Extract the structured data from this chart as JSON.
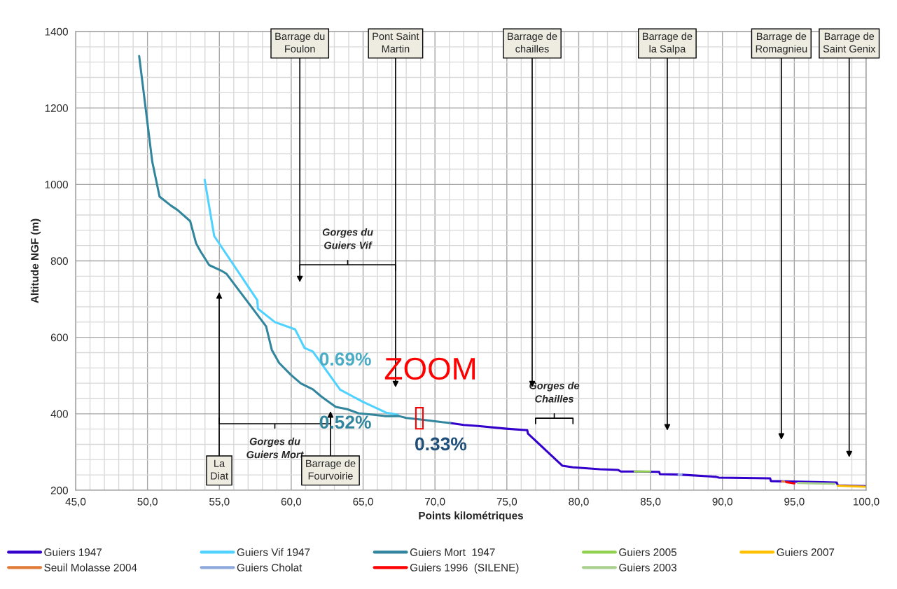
{
  "chart_data": {
    "type": "line",
    "xlabel": "Points kilométriques",
    "ylabel": "Altitude NGF (m)",
    "xlim": [
      45,
      100
    ],
    "ylim": [
      200,
      1400
    ],
    "xticks": [
      {
        "value": 45,
        "label": "45,0"
      },
      {
        "value": 50,
        "label": "50,0"
      },
      {
        "value": 55,
        "label": "55,0"
      },
      {
        "value": 60,
        "label": "60,0"
      },
      {
        "value": 65,
        "label": "65,0"
      },
      {
        "value": 70,
        "label": "70,0"
      },
      {
        "value": 75,
        "label": "75,0"
      },
      {
        "value": 80,
        "label": "80,0"
      },
      {
        "value": 85,
        "label": "85,0"
      },
      {
        "value": 90,
        "label": "90,0"
      },
      {
        "value": 95,
        "label": "95,0"
      },
      {
        "value": 100,
        "label": "100,0"
      }
    ],
    "yticks": [
      200,
      400,
      600,
      800,
      1000,
      1200,
      1400
    ],
    "grid": true,
    "legend": "bottom",
    "series": [
      {
        "name": "Guiers 1947",
        "color": "#3300cc",
        "x": [
          71.06,
          72.0,
          73.0,
          74.96,
          76.42,
          76.47,
          78.87,
          79.6,
          81.47,
          82.75,
          82.93,
          83.9,
          85.6,
          85.65,
          86.99,
          89.57,
          89.75,
          93.32,
          93.37,
          97.95,
          98.03,
          99.9
        ],
        "values": [
          376,
          371,
          368,
          361,
          357,
          348,
          264,
          260,
          255,
          253,
          249,
          249,
          248,
          242,
          241,
          235,
          233,
          231,
          224,
          220,
          213,
          211
        ]
      },
      {
        "name": "Guiers Vif 1947",
        "color": "#4fd2ff",
        "x": [
          53.98,
          54.64,
          57.64,
          57.68,
          58.86,
          60.27,
          60.93,
          61.5,
          63.4,
          64.95,
          66.6,
          67.4
        ],
        "values": [
          1012,
          865,
          697,
          675,
          640,
          621,
          572,
          563,
          463,
          432,
          403,
          398
        ]
      },
      {
        "name": "Guiers Mort  1947",
        "color": "#31859c",
        "x": [
          49.42,
          50.33,
          50.84,
          51.65,
          52.06,
          52.97,
          53.38,
          53.67,
          54.29,
          55.2,
          55.5,
          58.25,
          58.65,
          59.16,
          59.97,
          60.68,
          61.5,
          62.1,
          62.5,
          63.1,
          63.9,
          64.7,
          65.65,
          66.5,
          67.5,
          68.0,
          69.0,
          70.5,
          71.06
        ],
        "values": [
          1336,
          1060,
          968,
          944,
          934,
          904,
          846,
          826,
          789,
          773,
          766,
          629,
          567,
          533,
          502,
          479,
          464,
          445,
          434,
          418,
          412,
          401,
          398,
          394,
          394,
          389,
          385,
          378,
          376
        ]
      },
      {
        "name": "Guiers 2005",
        "color": "#92d050",
        "x": [
          83.9,
          84.96
        ],
        "values": [
          249,
          249
        ]
      },
      {
        "name": "Guiers 2007",
        "color": "#ffc000",
        "x": [
          98.03,
          99.9
        ],
        "values": [
          212,
          209
        ]
      },
      {
        "name": "Seuil Molasse 2004",
        "color": "#e07b39",
        "x": [
          94.15,
          94.3
        ],
        "values": [
          223,
          223
        ]
      },
      {
        "name": "Guiers Cholat",
        "color": "#8ea9db",
        "x": [
          86.95,
          87.15
        ],
        "values": [
          241,
          241
        ]
      },
      {
        "name": "Guiers 1996  (SILENE)",
        "color": "#ff0000",
        "x": [
          94.45,
          95.0
        ],
        "values": [
          221,
          218
        ]
      },
      {
        "name": "Guiers 2003",
        "color": "#a9d08e",
        "x": [
          95.25,
          97.8
        ],
        "values": [
          219,
          217
        ]
      }
    ],
    "annotations": [
      "Barrage du\nFoulon",
      "Pont Saint\nMartin",
      "Barrage de\nchailles",
      "Barrage de\nla Salpa",
      "Barrage de\nRomagnieu",
      "Barrage de\nSaint Genix",
      "La\nDiat",
      "Barrage de\nFourvoirie",
      "0.69%",
      "0.52%",
      "0.33%",
      "ZOOM",
      "Gorges du\nGuiers Vif",
      "Gorges du\nGuiers Mort",
      "Gorges de\nChailles"
    ]
  }
}
